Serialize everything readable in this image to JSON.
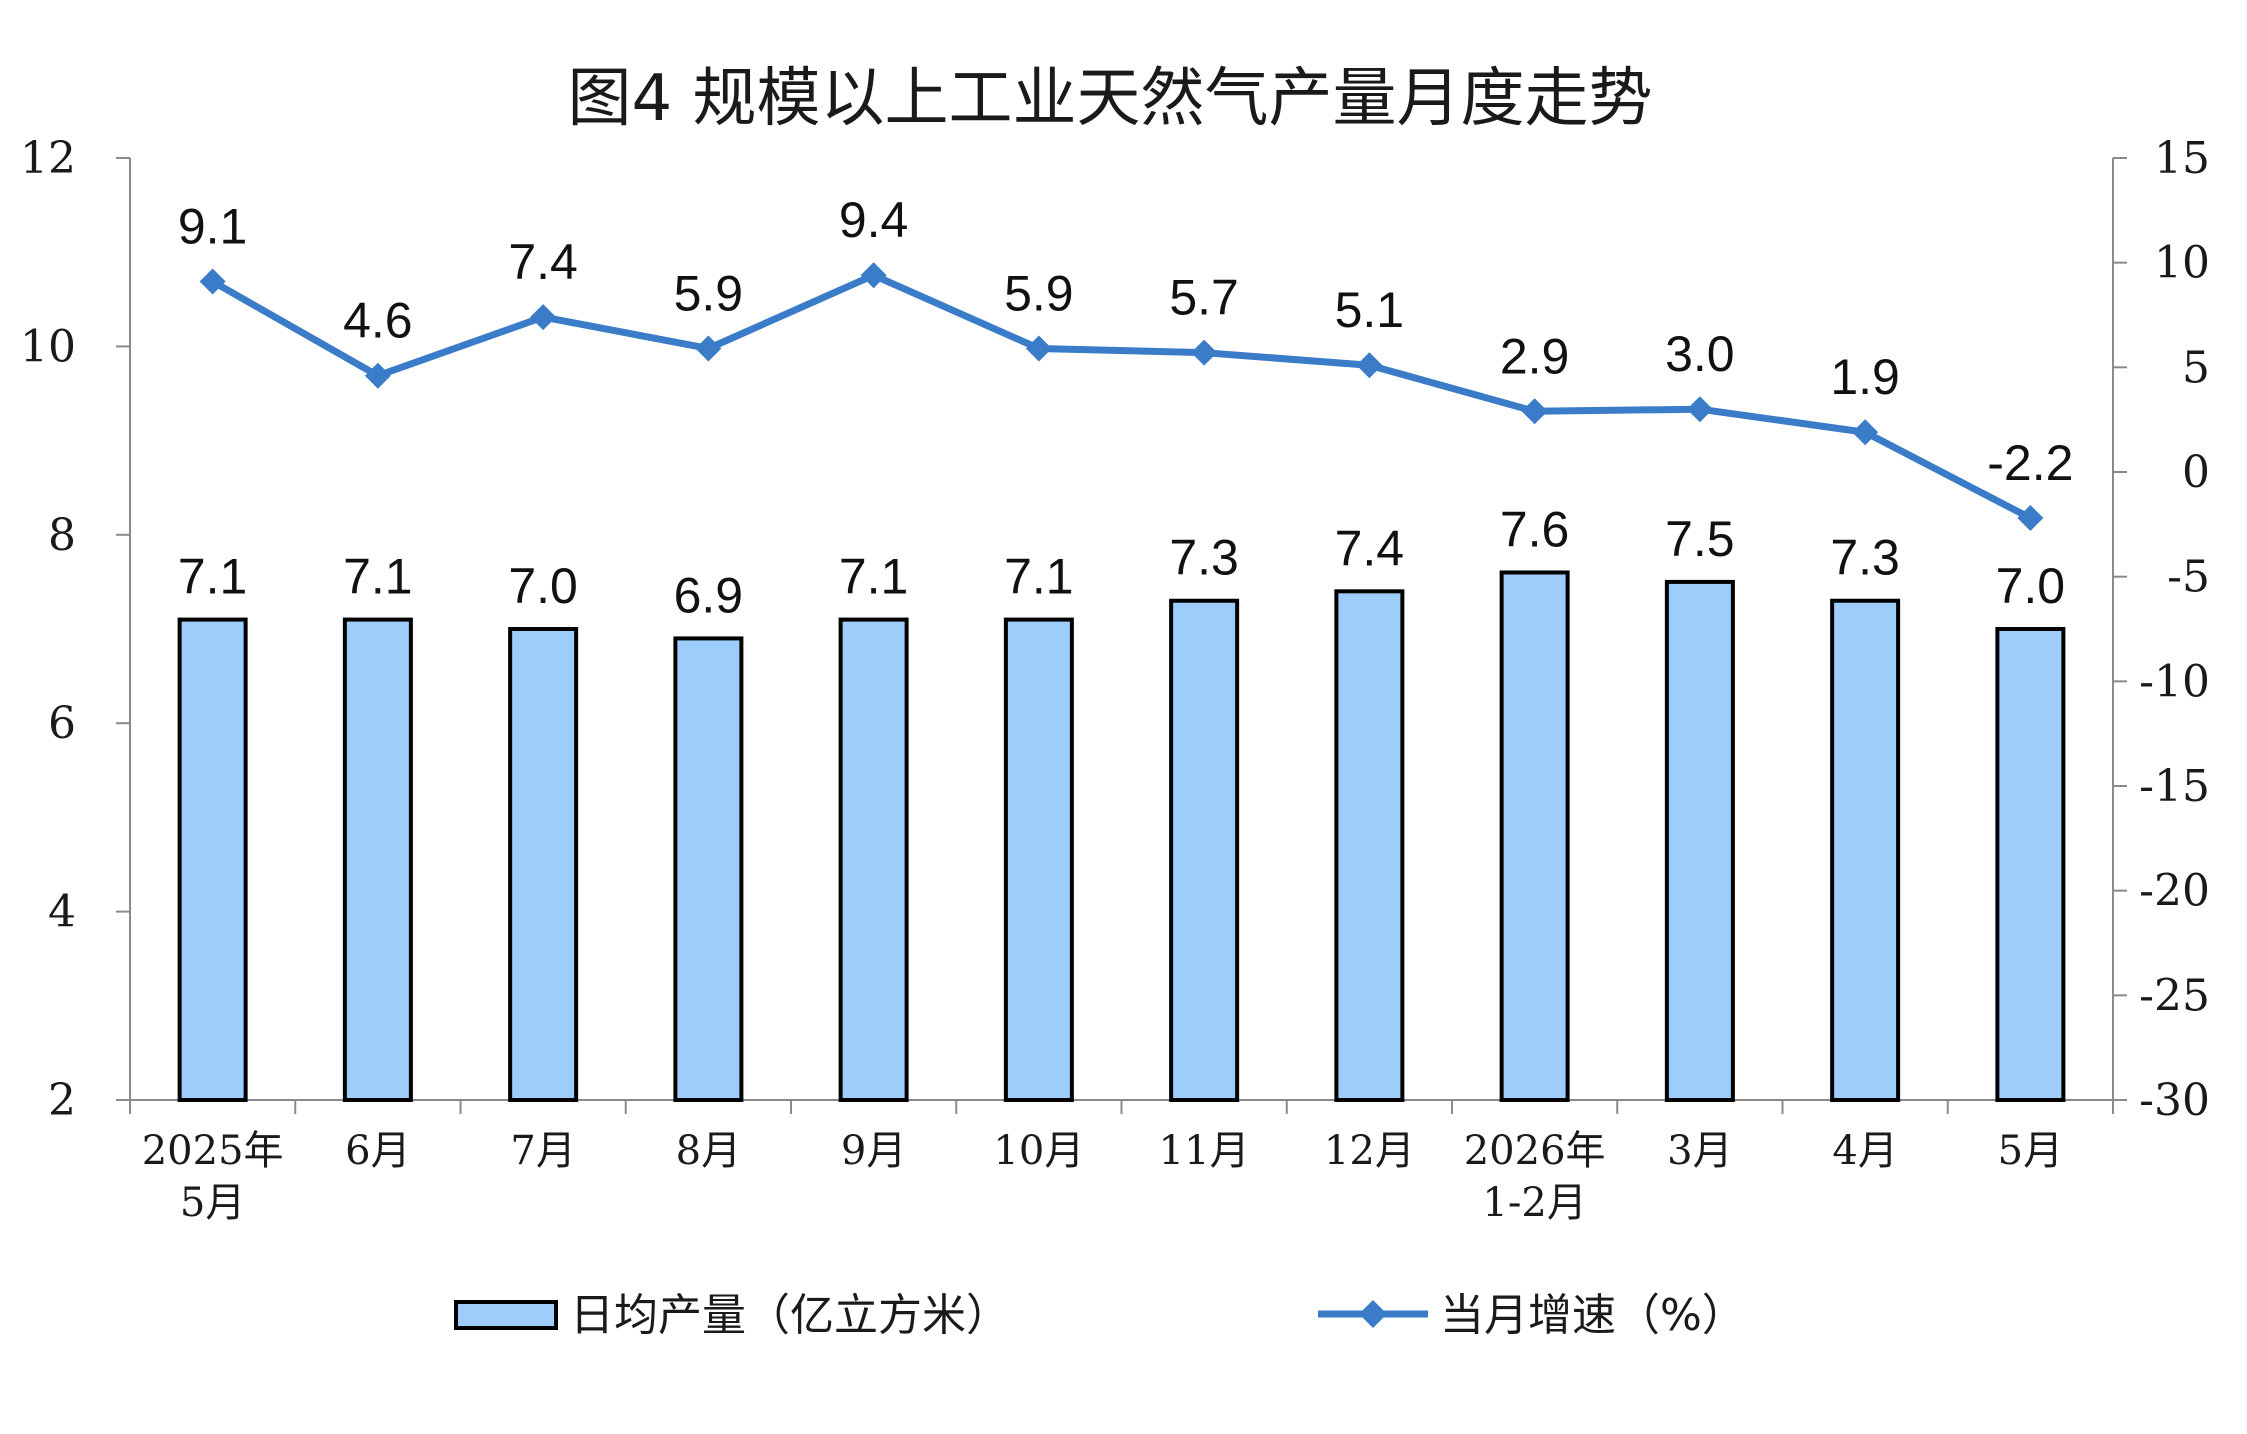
{
  "chart_data": {
    "type": "bar",
    "title": "图4  规模以上工业天然气产量月度走势",
    "categories": [
      [
        "2025年",
        "5月"
      ],
      [
        "6月"
      ],
      [
        "7月"
      ],
      [
        "8月"
      ],
      [
        "9月"
      ],
      [
        "10月"
      ],
      [
        "11月"
      ],
      [
        "12月"
      ],
      [
        "2026年",
        "1-2月"
      ],
      [
        "3月"
      ],
      [
        "4月"
      ],
      [
        "5月"
      ]
    ],
    "y_left": {
      "min": 2,
      "max": 12,
      "ticks": [
        "2",
        "4",
        "6",
        "8",
        "10",
        "12"
      ]
    },
    "y_right": {
      "min": -30,
      "max": 15,
      "ticks": [
        "-30",
        "-25",
        "-20",
        "-15",
        "-10",
        "-5",
        "0",
        "5",
        "10",
        "15"
      ]
    },
    "series": [
      {
        "name": "日均产量（亿立方米）",
        "type": "bar",
        "axis": "left",
        "color": "#9dcdfb",
        "values": [
          7.1,
          7.1,
          7.0,
          6.9,
          7.1,
          7.1,
          7.3,
          7.4,
          7.6,
          7.5,
          7.3,
          7.0
        ],
        "labels": [
          "7.1",
          "7.1",
          "7.0",
          "6.9",
          "7.1",
          "7.1",
          "7.3",
          "7.4",
          "7.6",
          "7.5",
          "7.3",
          "7.0"
        ]
      },
      {
        "name": "当月增速（%）",
        "type": "line",
        "axis": "right",
        "color": "#3a7cc8",
        "marker": "diamond",
        "values": [
          9.1,
          4.6,
          7.4,
          5.9,
          9.4,
          5.9,
          5.7,
          5.1,
          2.9,
          3.0,
          1.9,
          -2.2
        ],
        "labels": [
          "9.1",
          "4.6",
          "7.4",
          "5.9",
          "9.4",
          "5.9",
          "5.7",
          "5.1",
          "2.9",
          "3.0",
          "1.9",
          "-2.2"
        ]
      }
    ],
    "legend": "bottom"
  }
}
